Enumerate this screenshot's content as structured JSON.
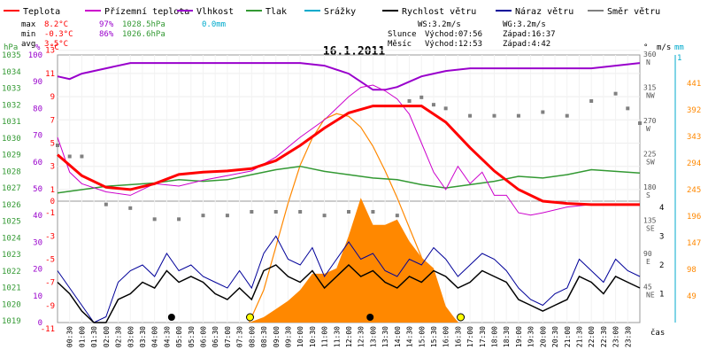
{
  "chart_data": {
    "type": "line",
    "title": "16.1.2011",
    "xlabel": "čas",
    "legend": [
      {
        "name": "Teplota",
        "color": "#ff0000"
      },
      {
        "name": "Přízemní teplota",
        "color": "#cc00cc"
      },
      {
        "name": "Vlhkost",
        "color": "#9900cc"
      },
      {
        "name": "Tlak",
        "color": "#339933"
      },
      {
        "name": "Srážky",
        "color": "#00aacc"
      },
      {
        "name": "Rychlost větru",
        "color": "#000000"
      },
      {
        "name": "Náraz větru",
        "color": "#000099"
      },
      {
        "name": "Směr větru",
        "color": "#808080"
      }
    ],
    "stats": {
      "max_label": "max",
      "max_temp": "8.2°C",
      "max_hum": "97%",
      "max_press": "1028.5hPa",
      "max_rain": "0.0mm",
      "min_label": "min",
      "min_temp": "-0.3°C",
      "min_hum": "86%",
      "min_press": "1026.6hPa",
      "avg_label": "avg",
      "avg_temp": "3.5°C",
      "ws": "WS:3.2m/s",
      "wg": "WG:3.2m/s",
      "sun_label": "Slunce",
      "sun_rise": "Východ:07:56",
      "sun_set": "Západ:16:37",
      "moon_label": "Měsíc",
      "moon_rise": "Východ:12:53",
      "moon_set": "Západ:4:42"
    },
    "axes": {
      "hpa": {
        "label": "hPa",
        "ticks": [
          "1035",
          "1034",
          "1033",
          "1032",
          "1031",
          "1030",
          "1029",
          "1028",
          "1027",
          "1026",
          "1025",
          "1024",
          "1023",
          "1022",
          "1021",
          "1020",
          "1019"
        ]
      },
      "percent": {
        "label": "%",
        "ticks": [
          "100",
          "90",
          "80",
          "70",
          "60",
          "50",
          "40",
          "30",
          "20",
          "10",
          "0"
        ]
      },
      "celsius_top": {
        "label": "°C",
        "ticks": [
          "13",
          "11",
          "9",
          "7",
          "5",
          "3",
          "1"
        ]
      },
      "celsius_bottom": {
        "ticks": [
          "0",
          "-1",
          "-3",
          "-5",
          "-7",
          "-9",
          "-11"
        ]
      },
      "direction": {
        "label": "°",
        "ticks": [
          "360",
          "315",
          "270",
          "225",
          "180",
          "135",
          "90",
          "45"
        ],
        "names": [
          "N",
          "NW",
          "W",
          "SW",
          "S",
          "SE",
          "E",
          "NE"
        ]
      },
      "wind_ms": {
        "label": "m/s",
        "ticks": [
          "4",
          "3",
          "2",
          "1"
        ]
      },
      "rain_mm": {
        "label": "mm",
        "ticks": [
          "1"
        ]
      },
      "solar": {
        "ticks": [
          "441",
          "392",
          "343",
          "294",
          "245",
          "196",
          "147",
          "98",
          "49"
        ]
      }
    },
    "x_ticks": [
      "00:30",
      "01:00",
      "01:30",
      "02:00",
      "02:30",
      "03:00",
      "03:30",
      "04:00",
      "04:30",
      "05:00",
      "05:30",
      "06:00",
      "06:30",
      "07:00",
      "07:30",
      "08:00",
      "08:30",
      "09:00",
      "09:30",
      "10:00",
      "10:30",
      "11:00",
      "11:30",
      "12:00",
      "12:30",
      "13:00",
      "13:30",
      "14:00",
      "14:30",
      "15:00",
      "15:30",
      "16:00",
      "16:30",
      "17:00",
      "17:30",
      "18:00",
      "18:30",
      "19:00",
      "19:30",
      "20:00",
      "20:30",
      "21:00",
      "21:30",
      "22:00",
      "22:30",
      "23:00",
      "23:30"
    ],
    "series": {
      "temperature": {
        "unit": "°C",
        "x": [
          0,
          1,
          2,
          3,
          4,
          5,
          6,
          7,
          8,
          9,
          10,
          11,
          12,
          13,
          14,
          15,
          16,
          17,
          18,
          19,
          20,
          21,
          22,
          23,
          24
        ],
        "values": [
          4.0,
          2.2,
          1.2,
          1.0,
          1.5,
          2.3,
          2.5,
          2.6,
          2.8,
          3.5,
          4.8,
          6.3,
          7.6,
          8.2,
          8.2,
          8.2,
          6.8,
          4.6,
          2.6,
          1.0,
          0.0,
          -0.2,
          -0.3,
          -0.3,
          -0.3
        ]
      },
      "ground_temperature": {
        "unit": "°C",
        "x": [
          0,
          0.5,
          1,
          2,
          3,
          4,
          5,
          6,
          7,
          8,
          9,
          10,
          11,
          12,
          12.5,
          13,
          13.5,
          14,
          14.5,
          15,
          15.5,
          16,
          16.5,
          17,
          17.5,
          18,
          18.5,
          19,
          19.5,
          20,
          21,
          22,
          23,
          24
        ],
        "values": [
          5.5,
          2.5,
          1.5,
          0.8,
          0.5,
          1.5,
          1.3,
          1.8,
          2.2,
          2.6,
          3.8,
          5.5,
          7.0,
          9.0,
          9.8,
          10.0,
          9.5,
          8.8,
          7.5,
          5.0,
          2.5,
          1.0,
          3.0,
          1.5,
          2.5,
          0.5,
          0.5,
          -1.0,
          -1.2,
          -1.0,
          -0.5,
          -0.3,
          -0.3,
          -0.3
        ]
      },
      "humidity": {
        "unit": "%",
        "x": [
          0,
          0.5,
          1,
          2,
          3,
          4,
          5,
          6,
          7,
          8,
          9,
          10,
          11,
          12,
          12.5,
          13,
          13.5,
          14,
          14.5,
          15,
          15.5,
          16,
          17,
          18,
          19,
          20,
          21,
          22,
          23,
          24
        ],
        "values": [
          92,
          91,
          93,
          95,
          97,
          97,
          97,
          97,
          97,
          97,
          97,
          97,
          96,
          93,
          90,
          87,
          87,
          88,
          90,
          92,
          93,
          94,
          95,
          95,
          95,
          95,
          95,
          95,
          96,
          97
        ]
      },
      "pressure": {
        "unit": "hPa",
        "x": [
          0,
          1,
          2,
          3,
          4,
          5,
          6,
          7,
          8,
          9,
          10,
          11,
          12,
          13,
          14,
          15,
          16,
          17,
          18,
          19,
          20,
          21,
          22,
          23,
          24
        ],
        "values": [
          1026.8,
          1027.0,
          1027.2,
          1027.3,
          1027.4,
          1027.6,
          1027.5,
          1027.6,
          1027.9,
          1028.2,
          1028.4,
          1028.1,
          1027.9,
          1027.7,
          1027.6,
          1027.3,
          1027.1,
          1027.3,
          1027.5,
          1027.8,
          1027.7,
          1027.9,
          1028.2,
          1028.1,
          1028.0
        ]
      },
      "wind_speed": {
        "unit": "m/s",
        "x": [
          0,
          0.5,
          1,
          1.5,
          2,
          2.5,
          3,
          3.5,
          4,
          4.5,
          5,
          5.5,
          6,
          6.5,
          7,
          7.5,
          8,
          8.5,
          9,
          9.5,
          10,
          10.5,
          11,
          11.5,
          12,
          12.5,
          13,
          13.5,
          14,
          14.5,
          15,
          15.5,
          16,
          16.5,
          17,
          17.5,
          18,
          18.5,
          19,
          19.5,
          20,
          20.5,
          21,
          21.5,
          22,
          22.5,
          23,
          23.5,
          24
        ],
        "values": [
          1.4,
          1.0,
          0.4,
          0.0,
          0.0,
          0.8,
          1.0,
          1.4,
          1.2,
          1.8,
          1.4,
          1.6,
          1.4,
          1.0,
          0.8,
          1.2,
          0.8,
          1.8,
          2.0,
          1.6,
          1.4,
          1.8,
          1.2,
          1.6,
          2.0,
          1.6,
          1.8,
          1.4,
          1.2,
          1.6,
          1.4,
          1.8,
          1.6,
          1.2,
          1.4,
          1.8,
          1.6,
          1.4,
          0.8,
          0.6,
          0.4,
          0.6,
          0.8,
          1.6,
          1.4,
          1.0,
          1.6,
          1.4,
          1.2
        ]
      },
      "wind_gust": {
        "unit": "m/s",
        "x": [
          0,
          0.5,
          1,
          1.5,
          2,
          2.5,
          3,
          3.5,
          4,
          4.5,
          5,
          5.5,
          6,
          6.5,
          7,
          7.5,
          8,
          8.5,
          9,
          9.5,
          10,
          10.5,
          11,
          11.5,
          12,
          12.5,
          13,
          13.5,
          14,
          14.5,
          15,
          15.5,
          16,
          16.5,
          17,
          17.5,
          18,
          18.5,
          19,
          19.5,
          20,
          20.5,
          21,
          21.5,
          22,
          22.5,
          23,
          23.5,
          24
        ],
        "values": [
          1.8,
          1.2,
          0.6,
          0.0,
          0.2,
          1.4,
          1.8,
          2.0,
          1.6,
          2.4,
          1.8,
          2.0,
          1.6,
          1.4,
          1.2,
          1.8,
          1.2,
          2.4,
          3.0,
          2.2,
          2.0,
          2.6,
          1.6,
          2.2,
          2.8,
          2.2,
          2.4,
          1.8,
          1.6,
          2.2,
          2.0,
          2.6,
          2.2,
          1.6,
          2.0,
          2.4,
          2.2,
          1.8,
          1.2,
          0.8,
          0.6,
          1.0,
          1.2,
          2.2,
          1.8,
          1.4,
          2.2,
          1.8,
          1.6
        ]
      },
      "wind_direction": {
        "unit": "°",
        "x": [
          0,
          0.5,
          1,
          2,
          3,
          4,
          5,
          6,
          7,
          8,
          9,
          10,
          11,
          12,
          13,
          14,
          14.5,
          15,
          15.5,
          16,
          17,
          18,
          19,
          20,
          21,
          22,
          23,
          23.5,
          24
        ],
        "values": [
          240,
          225,
          225,
          160,
          155,
          140,
          140,
          145,
          145,
          150,
          150,
          150,
          145,
          150,
          150,
          145,
          300,
          305,
          295,
          290,
          280,
          280,
          280,
          285,
          280,
          300,
          310,
          290,
          270
        ]
      },
      "solar_radiation": {
        "unit": "W/m²",
        "x": [
          7.9,
          8.5,
          9,
          9.5,
          10,
          10.5,
          11,
          11.5,
          12,
          12.5,
          13,
          13.5,
          14,
          14.5,
          15,
          15.5,
          16,
          16.5
        ],
        "values": [
          0,
          10,
          25,
          40,
          60,
          90,
          90,
          100,
          160,
          230,
          180,
          180,
          190,
          150,
          120,
          100,
          30,
          0
        ]
      },
      "theoretical_solar": {
        "unit": "W/m²",
        "x": [
          7.9,
          8.5,
          9,
          9.5,
          10,
          10.5,
          11,
          11.5,
          12,
          12.5,
          13,
          13.5,
          14,
          14.5,
          15,
          15.5,
          16,
          16.5
        ],
        "values": [
          0,
          60,
          140,
          220,
          290,
          340,
          375,
          385,
          380,
          360,
          325,
          280,
          230,
          175,
          120,
          70,
          25,
          0
        ]
      }
    },
    "events": {
      "sunrise": "07:56",
      "sunset": "16:37",
      "moonrise": "12:53",
      "moonset": "4:42"
    }
  }
}
